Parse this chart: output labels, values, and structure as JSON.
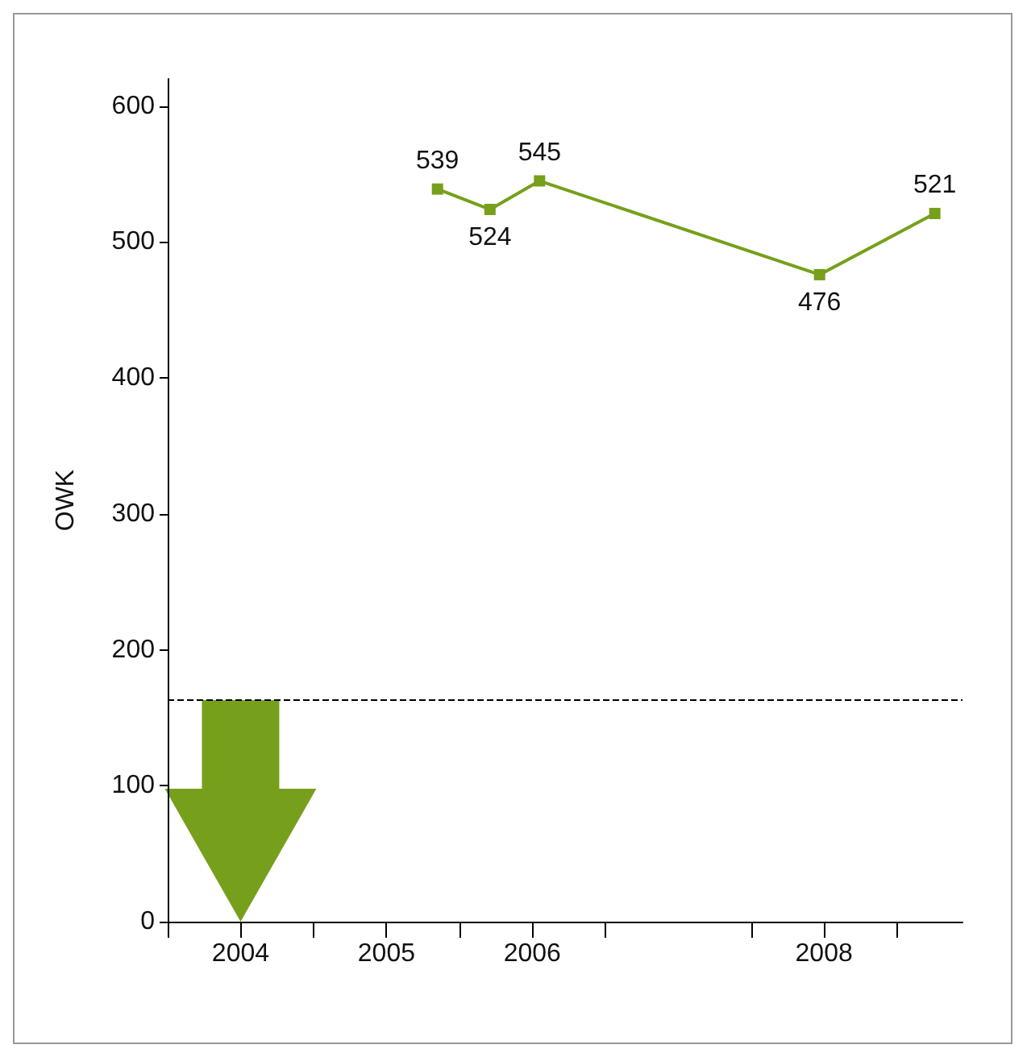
{
  "chart_data": {
    "type": "line",
    "ylabel": "OWK",
    "x": [
      2005.35,
      2005.71,
      2006.05,
      2007.97,
      2008.76
    ],
    "series": [
      {
        "color": "#76a01c",
        "values": [
          539,
          524,
          545,
          476,
          521
        ]
      }
    ],
    "xlim": [
      2003.5,
      2008.95
    ],
    "xticks": [
      {
        "value": 2003.5,
        "label": null
      },
      2004,
      {
        "value": 2004.5,
        "label": null
      },
      2005,
      {
        "value": 2005.5,
        "label": null
      },
      2006,
      {
        "value": 2006.5,
        "label": null
      },
      {
        "value": 2007.5,
        "label": null
      },
      2008,
      {
        "value": 2008.5,
        "label": null
      }
    ],
    "ylim": [
      0,
      620
    ],
    "yticks": [
      0,
      100,
      200,
      300,
      400,
      500,
      600
    ],
    "ref_lines": [
      {
        "axis": "y",
        "value": 163,
        "color": "#000000",
        "line_style": "dashed"
      }
    ],
    "data_labels": true,
    "marker": "square",
    "line_style": "solid",
    "grid": false
  }
}
